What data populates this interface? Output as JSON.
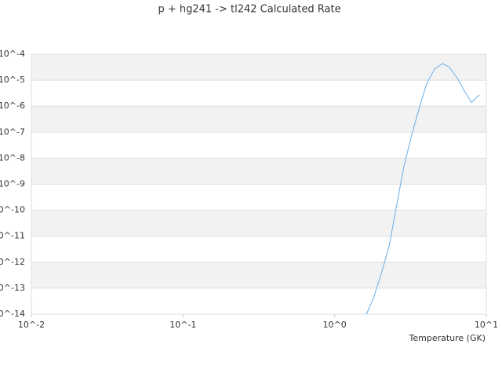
{
  "chart_data": {
    "type": "line",
    "title": "p + hg241 -> tl242 Calculated Rate",
    "x_label": "Temperature (GK)",
    "x_log": true,
    "y_log": true,
    "banded_grid": true,
    "xlim": [
      0.01,
      10
    ],
    "ylim": [
      1e-14,
      0.0001
    ],
    "xticks": [
      {
        "value": 0.01,
        "label": "10^-2"
      },
      {
        "value": 0.1,
        "label": "10^-1"
      },
      {
        "value": 1,
        "label": "10^0"
      },
      {
        "value": 10,
        "label": "10^1"
      }
    ],
    "yticks": [
      {
        "value": 0.0001,
        "label": "10^-4"
      },
      {
        "value": 1e-05,
        "label": "10^-5"
      },
      {
        "value": 1e-06,
        "label": "10^-6"
      },
      {
        "value": 1e-07,
        "label": "10^-7"
      },
      {
        "value": 1e-08,
        "label": "10^-8"
      },
      {
        "value": 1e-09,
        "label": "10^-9"
      },
      {
        "value": 1e-10,
        "label": "10^-10"
      },
      {
        "value": 1e-11,
        "label": "10^-11"
      },
      {
        "value": 1e-12,
        "label": "10^-12"
      },
      {
        "value": 1e-13,
        "label": "10^-13"
      },
      {
        "value": 1e-14,
        "label": "10^-14"
      }
    ],
    "x": [
      1.62,
      1.8,
      2.03,
      2.29,
      2.58,
      2.86,
      3.23,
      3.64,
      4.05,
      4.56,
      5.14,
      5.72,
      6.44,
      7.18,
      7.98,
      8.99
    ],
    "series": [
      {
        "color": "#6aaee8",
        "values": [
          1e-14,
          4e-14,
          3.7e-13,
          4.3e-12,
          1.9e-10,
          4.8e-09,
          8.3e-08,
          1e-06,
          7.6e-06,
          2.7e-05,
          4.4e-05,
          3.1e-05,
          1.2e-05,
          3.8e-06,
          1.4e-06,
          2.7e-06
        ]
      }
    ]
  }
}
